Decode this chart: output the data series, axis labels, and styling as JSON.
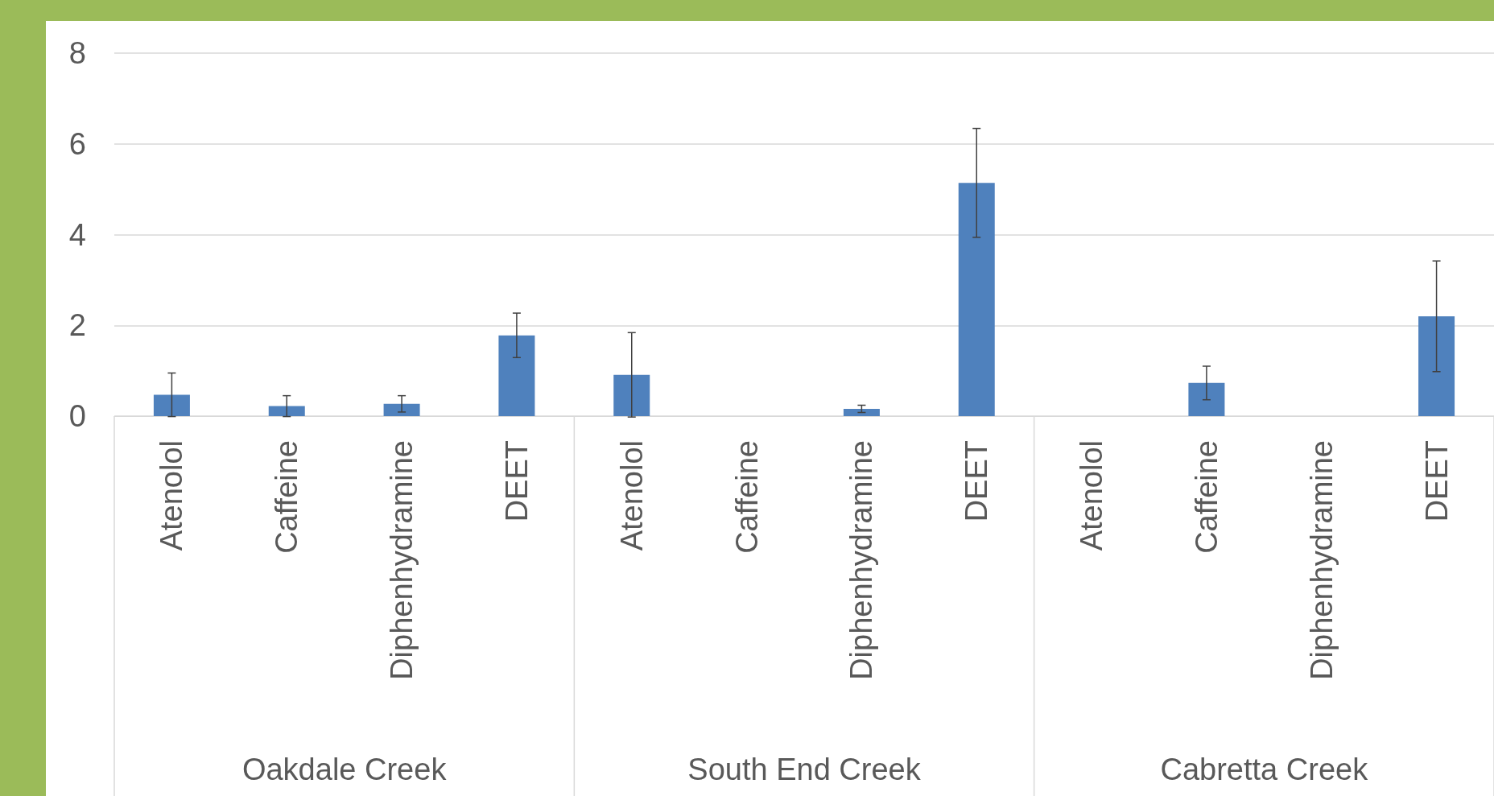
{
  "chart_data": {
    "type": "bar",
    "categories": [
      "Atenolol",
      "Caffeine",
      "Diphenhydramine",
      "DEET",
      "Atenolol",
      "Caffeine",
      "Diphenhydramine",
      "DEET",
      "Atenolol",
      "Caffeine",
      "Diphenhydramine",
      "DEET"
    ],
    "values": [
      0.47,
      0.22,
      0.27,
      1.78,
      0.91,
      0,
      0.16,
      5.14,
      0,
      0.73,
      0,
      2.2
    ],
    "errors": [
      0.48,
      0.23,
      0.18,
      0.49,
      0.93,
      null,
      0.08,
      1.2,
      null,
      0.37,
      null,
      1.22
    ],
    "color": "#4f81bd",
    "ylim": [
      0,
      8
    ],
    "yticks": [
      0,
      2,
      4,
      6,
      8
    ],
    "grid": "y",
    "annotations": [
      "Oakdale Creek",
      "South End Creek",
      "Cabretta Creek"
    ]
  }
}
